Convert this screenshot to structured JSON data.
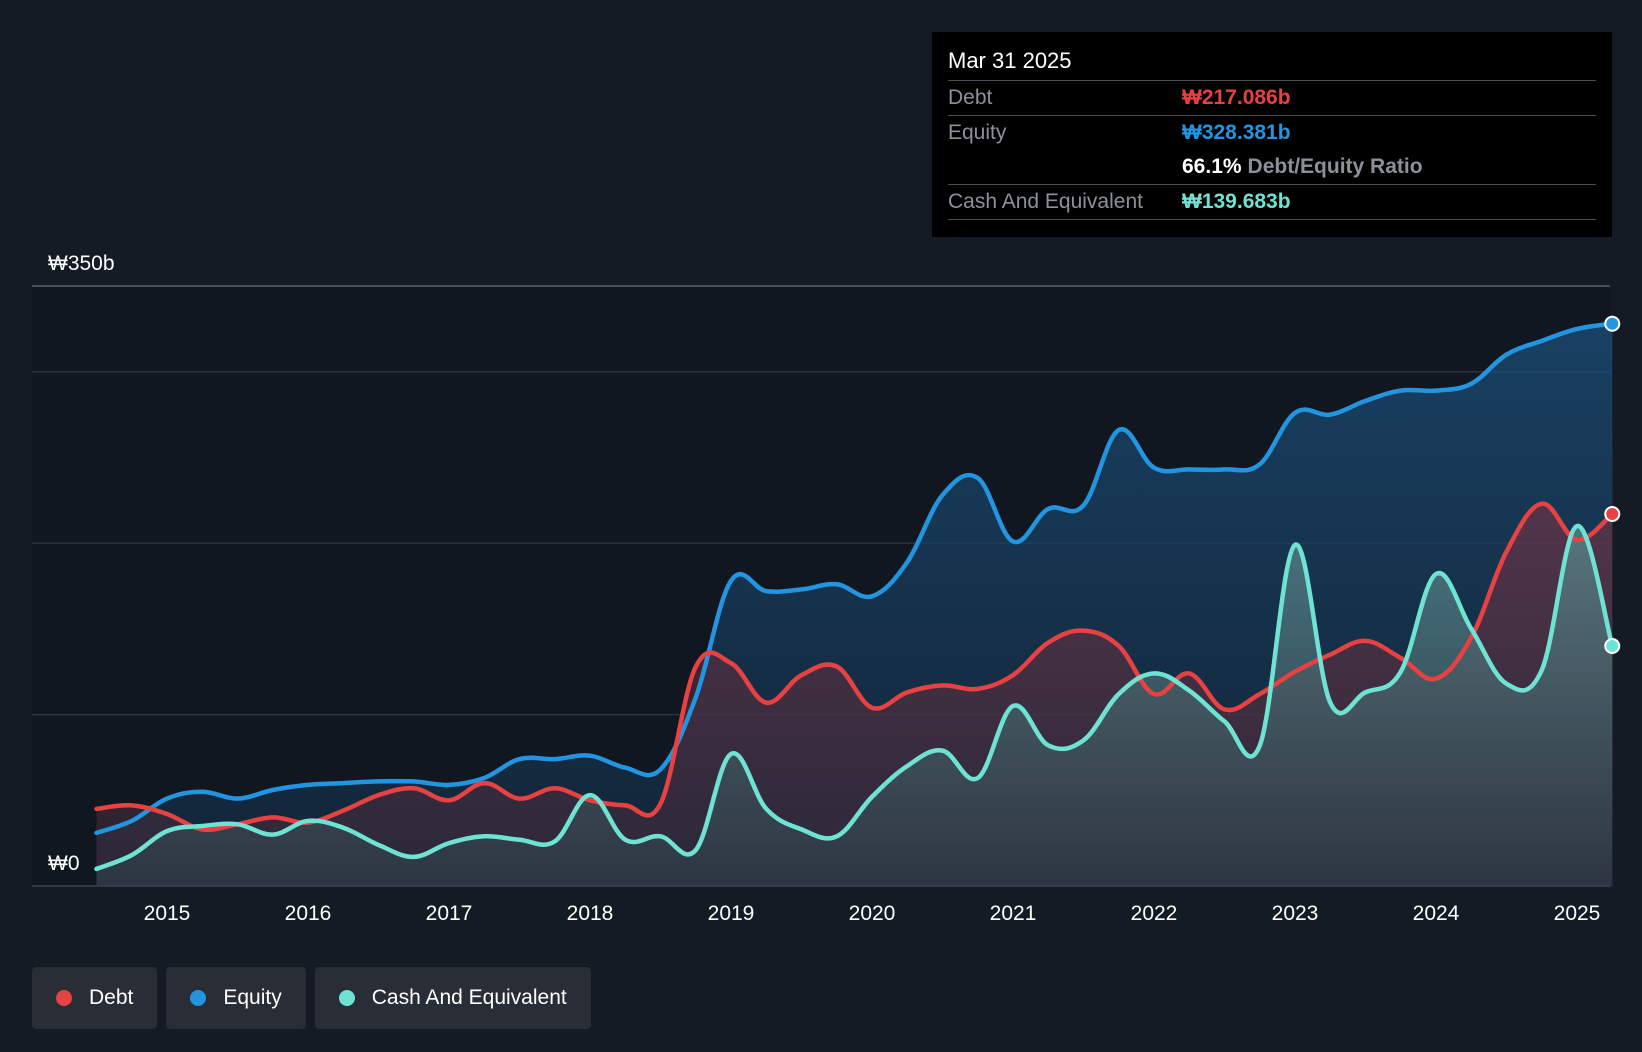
{
  "chart_data": {
    "type": "area",
    "currency_labels": {
      "top": "₩350b",
      "bottom": "₩0"
    },
    "x_ticks": [
      "2015",
      "2016",
      "2017",
      "2018",
      "2019",
      "2020",
      "2021",
      "2022",
      "2023",
      "2024",
      "2025"
    ],
    "x_tick_values": [
      2015,
      2016,
      2017,
      2018,
      2019,
      2020,
      2021,
      2022,
      2023,
      2024,
      2025
    ],
    "xlim": [
      2014.5,
      2025.25
    ],
    "ylim": [
      0,
      350
    ],
    "gridlines": [
      0,
      100,
      200,
      300,
      350
    ],
    "colors": {
      "debt": "#e84142",
      "equity": "#2394df",
      "cash": "#6fe3d3"
    },
    "series": [
      {
        "name": "Debt",
        "key": "debt",
        "x": [
          2014.5,
          2014.75,
          2015.0,
          2015.25,
          2015.5,
          2015.75,
          2016.0,
          2016.25,
          2016.5,
          2016.75,
          2017.0,
          2017.25,
          2017.5,
          2017.75,
          2018.0,
          2018.25,
          2018.5,
          2018.75,
          2019.0,
          2019.25,
          2019.5,
          2019.75,
          2020.0,
          2020.25,
          2020.5,
          2020.75,
          2021.0,
          2021.25,
          2021.5,
          2021.75,
          2022.0,
          2022.25,
          2022.5,
          2022.75,
          2023.0,
          2023.25,
          2023.5,
          2023.75,
          2024.0,
          2024.25,
          2024.5,
          2024.75,
          2025.0,
          2025.25
        ],
        "values": [
          45,
          47,
          42,
          33,
          36,
          40,
          37,
          44,
          53,
          57,
          50,
          60,
          51,
          57,
          50,
          47,
          48,
          128,
          130,
          107,
          123,
          128,
          104,
          113,
          117,
          115,
          123,
          142,
          149,
          140,
          112,
          124,
          103,
          112,
          125,
          135,
          143,
          133,
          121,
          145,
          195,
          223,
          202,
          217
        ]
      },
      {
        "name": "Equity",
        "key": "equity",
        "x": [
          2014.5,
          2014.75,
          2015.0,
          2015.25,
          2015.5,
          2015.75,
          2016.0,
          2016.25,
          2016.5,
          2016.75,
          2017.0,
          2017.25,
          2017.5,
          2017.75,
          2018.0,
          2018.25,
          2018.5,
          2018.75,
          2019.0,
          2019.25,
          2019.5,
          2019.75,
          2020.0,
          2020.25,
          2020.5,
          2020.75,
          2021.0,
          2021.25,
          2021.5,
          2021.75,
          2022.0,
          2022.25,
          2022.5,
          2022.75,
          2023.0,
          2023.25,
          2023.5,
          2023.75,
          2024.0,
          2024.25,
          2024.5,
          2024.75,
          2025.0,
          2025.25
        ],
        "values": [
          31,
          38,
          51,
          55,
          51,
          56,
          59,
          60,
          61,
          61,
          59,
          63,
          74,
          74,
          76,
          69,
          68,
          110,
          178,
          172,
          173,
          176,
          169,
          189,
          228,
          238,
          201,
          220,
          222,
          266,
          244,
          243,
          243,
          246,
          276,
          275,
          283,
          289,
          289,
          293,
          310,
          318,
          325,
          328
        ]
      },
      {
        "name": "Cash And Equivalent",
        "key": "cash",
        "x": [
          2014.5,
          2014.75,
          2015.0,
          2015.25,
          2015.5,
          2015.75,
          2016.0,
          2016.25,
          2016.5,
          2016.75,
          2017.0,
          2017.25,
          2017.5,
          2017.75,
          2018.0,
          2018.25,
          2018.5,
          2018.75,
          2019.0,
          2019.25,
          2019.5,
          2019.75,
          2020.0,
          2020.25,
          2020.5,
          2020.75,
          2021.0,
          2021.25,
          2021.5,
          2021.75,
          2022.0,
          2022.25,
          2022.5,
          2022.75,
          2023.0,
          2023.25,
          2023.5,
          2023.75,
          2024.0,
          2024.25,
          2024.5,
          2024.75,
          2025.0,
          2025.25
        ],
        "values": [
          10,
          18,
          32,
          35,
          36,
          30,
          38,
          34,
          24,
          17,
          25,
          29,
          27,
          26,
          53,
          27,
          29,
          21,
          77,
          45,
          33,
          29,
          52,
          70,
          79,
          63,
          105,
          82,
          85,
          112,
          124,
          114,
          96,
          82,
          199,
          107,
          113,
          125,
          182,
          150,
          118,
          126,
          210,
          140
        ]
      }
    ]
  },
  "tooltip": {
    "date": "Mar 31 2025",
    "debt_label": "Debt",
    "debt_value": "₩217.086b",
    "equity_label": "Equity",
    "equity_value": "₩328.381b",
    "ratio_value": "66.1%",
    "ratio_label": "Debt/Equity Ratio",
    "cash_label": "Cash And Equivalent",
    "cash_value": "₩139.683b"
  },
  "legend": [
    {
      "key": "debt",
      "label": "Debt",
      "color": "#e84142"
    },
    {
      "key": "equity",
      "label": "Equity",
      "color": "#2394df"
    },
    {
      "key": "cash",
      "label": "Cash And Equivalent",
      "color": "#6fe3d3"
    }
  ]
}
